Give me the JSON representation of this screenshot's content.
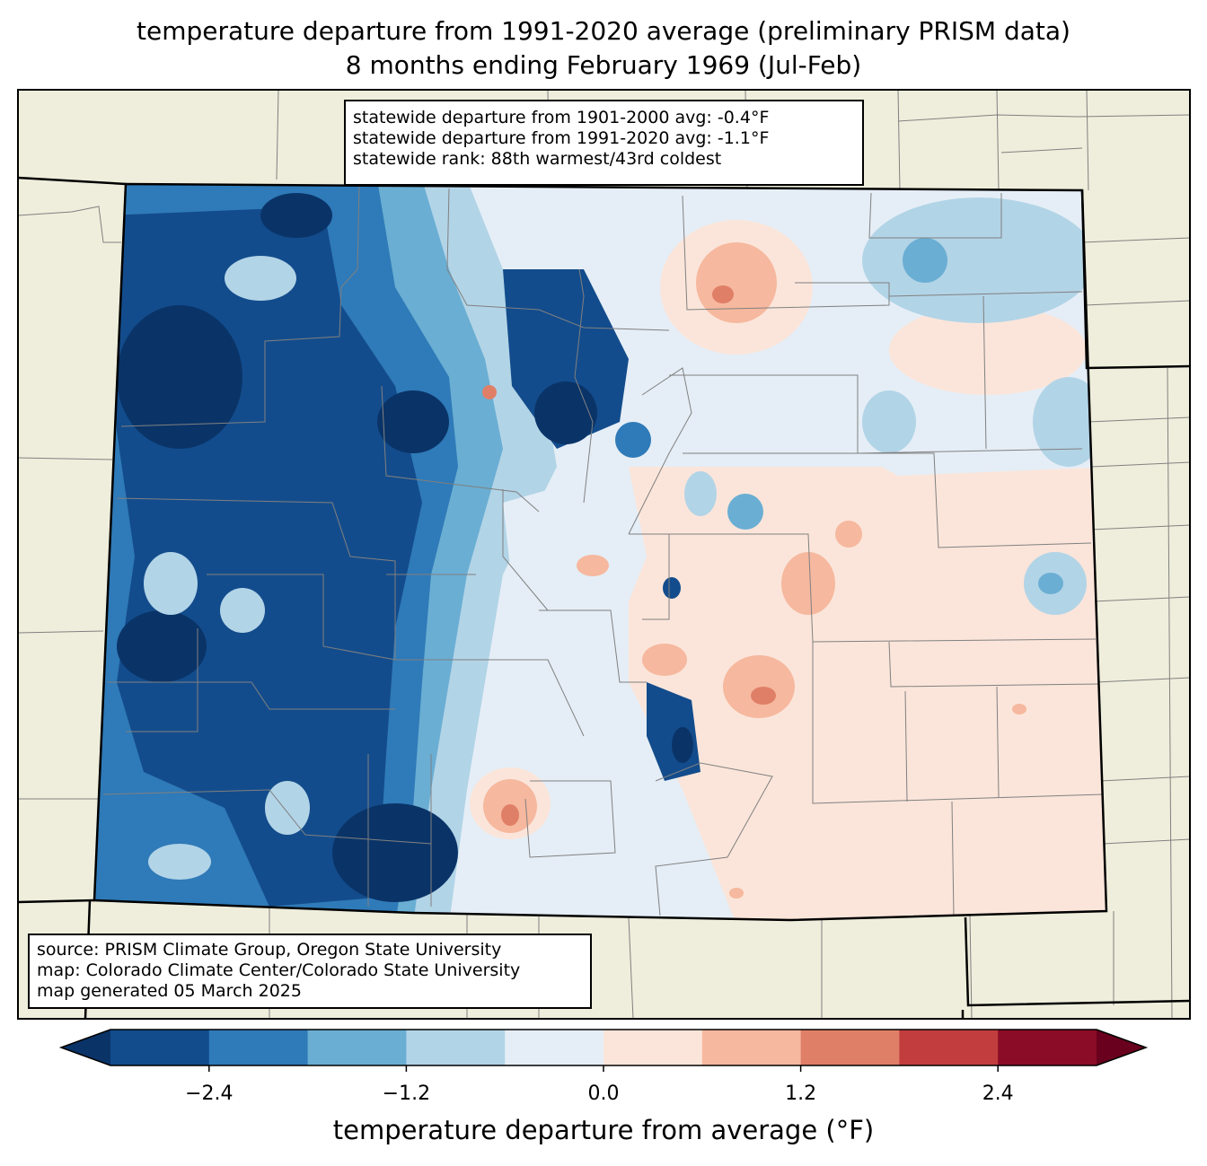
{
  "title": {
    "line1": "temperature departure from 1991-2020 average (preliminary PRISM data)",
    "line2": "8 months ending February 1969 (Jul-Feb)"
  },
  "stats": {
    "line1": "statewide departure from 1901-2000 avg: -0.4°F",
    "line2": "statewide departure from 1991-2020 avg: -1.1°F",
    "line3": "statewide rank: 88th warmest/43rd coldest"
  },
  "credits": {
    "line1": "source: PRISM Climate Group, Oregon State University",
    "line2": "map: Colorado Climate Center/Colorado State University",
    "line3": "map generated 05 March 2025"
  },
  "colorbar": {
    "label": "temperature departure from average (°F)",
    "ticks": [
      "−2.4",
      "−1.2",
      "0.0",
      "1.2",
      "2.4"
    ],
    "tick_values": [
      -2.4,
      -1.2,
      0.0,
      1.2,
      2.4
    ],
    "range": [
      -3.0,
      3.0
    ],
    "step": 0.6,
    "colors": [
      "#134c8c",
      "#2f7ab8",
      "#6aaed3",
      "#b2d4e7",
      "#e5eef6",
      "#fbe5da",
      "#f6b89e",
      "#e07f67",
      "#c23d3d",
      "#8a0c26"
    ],
    "extend_low_color": "#0a3468",
    "extend_high_color": "#68001e"
  },
  "colors": {
    "land": "#efeedc",
    "state_border": "#000000",
    "county_border": "#808080"
  }
}
